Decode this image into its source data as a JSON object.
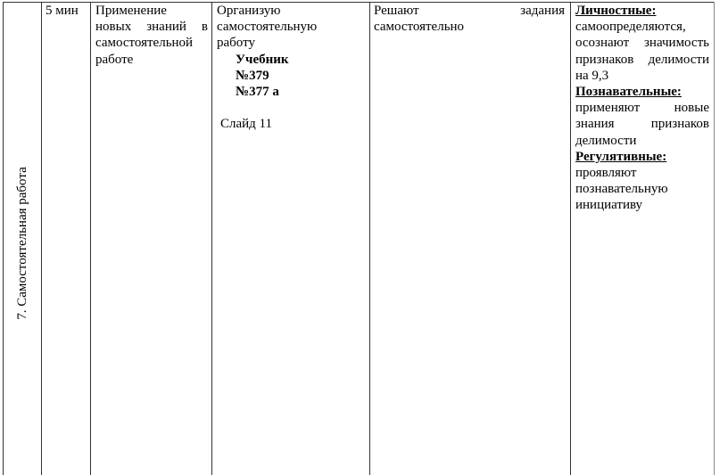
{
  "stage": "7. Самостоятельная работа",
  "time": "5 мин",
  "goal": {
    "line1": "Применение",
    "line2": "новых знаний в",
    "line3": "самостоятельной",
    "line4": "работе"
  },
  "teacher": {
    "line1": "Организую",
    "line2": "самостоятельную",
    "line3": "работу",
    "book": "Учебник",
    "task1": "№379",
    "task2": "№377 а",
    "slide": "Слайд 11"
  },
  "students": {
    "line1_left": "Решают",
    "line1_right": "задания",
    "line2": "самостоятельно"
  },
  "uud": {
    "personal_title": "Личностные:",
    "personal_lines": [
      "самоопределяются,",
      "осознают значимость",
      "признаков делимости",
      "на 9,3"
    ],
    "cognitive_title": "Познавательные:",
    "cognitive_lines": [
      "применяют новые",
      "знания признаков",
      "делимости"
    ],
    "regulatory_title": "Регулятивные:",
    "regulatory_lines": [
      "проявляют",
      "познавательную",
      "инициативу"
    ]
  }
}
